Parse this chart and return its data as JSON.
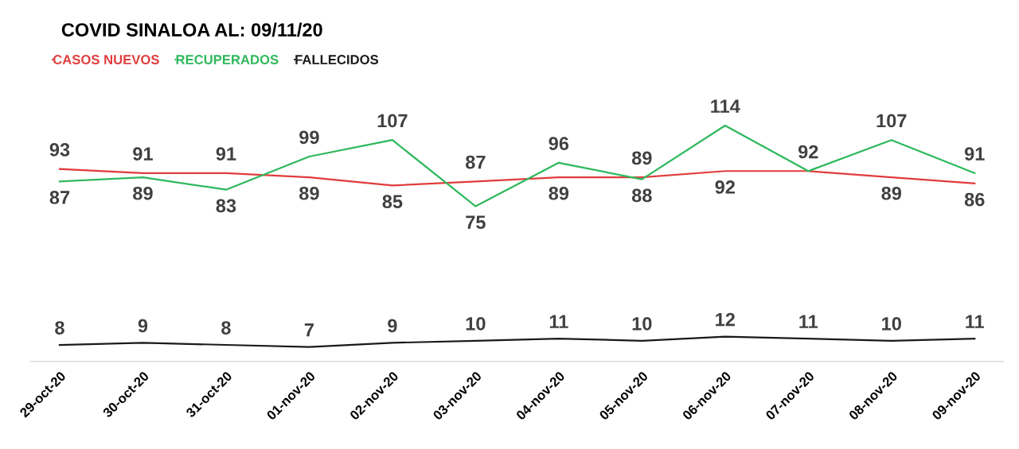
{
  "chart_data": {
    "type": "line",
    "title": "COVID SINALOA AL: 09/11/20",
    "categories": [
      "29-oct-20",
      "30-oct-20",
      "31-oct-20",
      "01-nov-20",
      "02-nov-20",
      "03-nov-20",
      "04-nov-20",
      "05-nov-20",
      "06-nov-20",
      "07-nov-20",
      "08-nov-20",
      "09-nov-20"
    ],
    "series": [
      {
        "name": "CASOS NUEVOS",
        "color": "#e03c3c",
        "values": [
          93,
          91,
          91,
          89,
          85,
          87,
          89,
          89,
          92,
          92,
          89,
          86
        ],
        "value_labels": [
          "93",
          "91",
          "91",
          "89",
          "85",
          "87",
          "89",
          "89",
          "92",
          "92",
          "89",
          "86"
        ]
      },
      {
        "name": "RECUPERADOS",
        "color": "#2eb85c",
        "values": [
          87,
          89,
          83,
          99,
          107,
          75,
          96,
          88,
          114,
          92,
          107,
          91
        ],
        "value_labels": [
          "87",
          "89",
          "83",
          "99",
          "107",
          "75",
          "96",
          "88",
          "114",
          null,
          "107",
          "91"
        ]
      },
      {
        "name": "FALLECIDOS",
        "color": "#1a1a1a",
        "values": [
          8,
          9,
          8,
          7,
          9,
          10,
          11,
          10,
          12,
          11,
          10,
          11
        ],
        "value_labels": [
          "8",
          "9",
          "8",
          "7",
          "9",
          "10",
          "11",
          "10",
          "12",
          "11",
          "10",
          "11"
        ]
      }
    ],
    "legend": "top left",
    "grid": false,
    "marker": "none",
    "line_style": "solid"
  }
}
